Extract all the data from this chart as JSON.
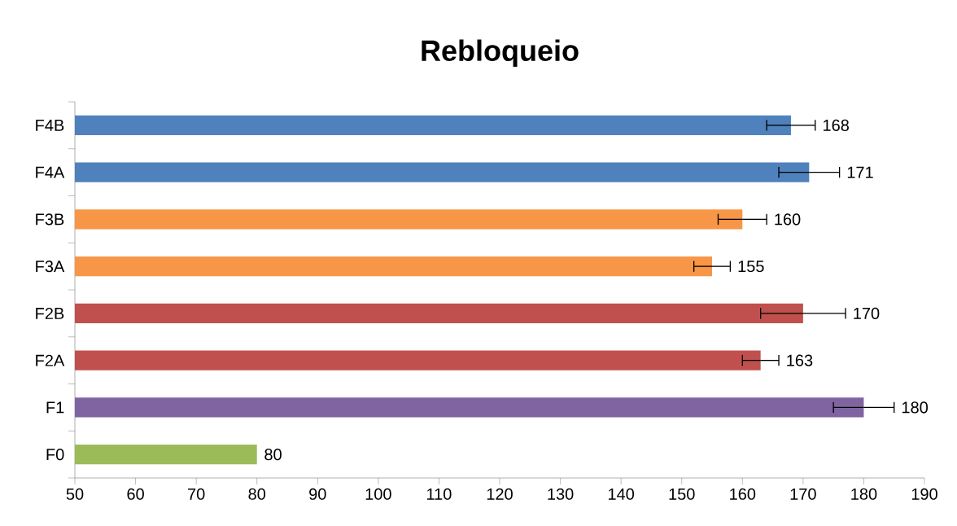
{
  "chart_data": {
    "type": "bar",
    "orientation": "horizontal",
    "title": "Rebloqueio",
    "categories": [
      "F4B",
      "F4A",
      "F3B",
      "F3A",
      "F2B",
      "F2A",
      "F1",
      "F0"
    ],
    "values": [
      168,
      171,
      160,
      155,
      170,
      163,
      180,
      80
    ],
    "value_labels": [
      "168",
      "171",
      "160",
      "155",
      "170",
      "163",
      "180",
      "80"
    ],
    "errors": [
      4,
      5,
      4,
      3,
      7,
      3,
      5,
      null
    ],
    "colors": [
      "#4f81bd",
      "#4f81bd",
      "#f79646",
      "#f79646",
      "#c0504d",
      "#c0504d",
      "#8064a2",
      "#9bbb59"
    ],
    "xlim": [
      50,
      190
    ],
    "xticks": [
      50,
      60,
      70,
      80,
      90,
      100,
      110,
      120,
      130,
      140,
      150,
      160,
      170,
      180,
      190
    ]
  }
}
